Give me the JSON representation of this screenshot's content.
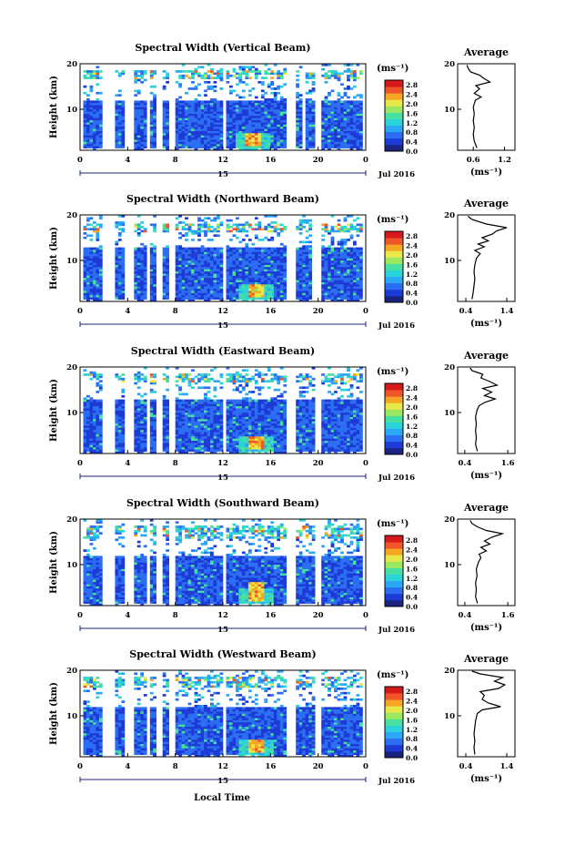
{
  "x_axis_title": "Local Time",
  "colorbar_unit": "(ms⁻¹)",
  "average_unit": "(ms⁻¹)",
  "average_title": "Average",
  "date_label": "Jul 2016",
  "day_label": "15",
  "y_axis_label": "Height (km)",
  "colormap": [
    "#1a237e",
    "#1d3ad6",
    "#2b6ef2",
    "#2aa7f5",
    "#2ad2d9",
    "#48e0a0",
    "#9be860",
    "#e8e84a",
    "#f5a623",
    "#f0552a",
    "#d7191c"
  ],
  "chart_data": [
    {
      "type": "heatmap",
      "title": "Spectral Width (Vertical Beam)",
      "xlabel": "Local Time",
      "ylabel": "Height (km)",
      "x_ticks": [
        "0",
        "4",
        "8",
        "12",
        "16",
        "20",
        "0"
      ],
      "y_ticks": [
        "10",
        "20"
      ],
      "xlim": [
        0,
        24
      ],
      "ylim": [
        1,
        20
      ],
      "colorbar_ticks": [
        "2.8",
        "2.4",
        "2.0",
        "1.6",
        "1.2",
        "0.8",
        "0.4",
        "0.0"
      ],
      "colorbar_range": [
        0.0,
        3.0
      ],
      "data_gaps_hours": [
        [
          1.8,
          2.8
        ],
        [
          3.8,
          4.4
        ],
        [
          5.5,
          5.8
        ],
        [
          6.5,
          6.9
        ],
        [
          7.6,
          8.1
        ],
        [
          12.0,
          12.3
        ],
        [
          17.3,
          18.0
        ],
        [
          18.6,
          19.0
        ],
        [
          19.7,
          20.3
        ]
      ],
      "features": {
        "low_layer_top_km": 12,
        "upper_band_km": [
          16.5,
          18.5
        ],
        "high_width_core": {
          "time_hours": 14.5,
          "height_km": [
            2.0,
            5.0
          ],
          "value": 2.6
        }
      },
      "average_profile": {
        "x_ticks": [
          "0.6",
          "1.2"
        ],
        "xlim": [
          0.3,
          1.4
        ],
        "height_km": [
          1.5,
          3,
          4.5,
          6,
          7.5,
          9,
          10.5,
          12,
          12.7,
          13.5,
          14.5,
          15.2,
          16,
          16.8,
          17.5,
          18.2,
          19,
          19.7
        ],
        "width": [
          0.67,
          0.62,
          0.6,
          0.62,
          0.6,
          0.62,
          0.6,
          0.64,
          0.75,
          0.62,
          0.72,
          0.65,
          0.92,
          0.8,
          0.72,
          0.55,
          0.5,
          0.48
        ]
      }
    },
    {
      "type": "heatmap",
      "title": "Spectral Width (Northward Beam)",
      "xlabel": "Local Time",
      "ylabel": "Height (km)",
      "x_ticks": [
        "0",
        "4",
        "8",
        "12",
        "16",
        "20",
        "0"
      ],
      "y_ticks": [
        "10",
        "20"
      ],
      "xlim": [
        0,
        24
      ],
      "ylim": [
        1,
        20
      ],
      "colorbar_ticks": [
        "2.8",
        "2.4",
        "2.0",
        "1.6",
        "1.2",
        "0.8",
        "0.4",
        "0.0"
      ],
      "colorbar_range": [
        0.0,
        3.0
      ],
      "data_gaps_hours": [
        [
          1.8,
          2.8
        ],
        [
          3.8,
          4.4
        ],
        [
          5.5,
          5.8
        ],
        [
          6.5,
          6.9
        ],
        [
          7.6,
          8.1
        ],
        [
          12.0,
          12.3
        ],
        [
          17.3,
          18.0
        ],
        [
          19.6,
          20.2
        ]
      ],
      "features": {
        "low_layer_top_km": 13,
        "upper_band_km": [
          16.0,
          18.0
        ],
        "high_width_core": {
          "time_hours": 14.8,
          "height_km": [
            2.0,
            5.0
          ],
          "value": 2.5
        }
      },
      "average_profile": {
        "x_ticks": [
          "0.4",
          "1.4"
        ],
        "xlim": [
          0.2,
          1.6
        ],
        "height_km": [
          1.5,
          3,
          4.5,
          6,
          7.5,
          9,
          10.5,
          11.5,
          12.2,
          13,
          13.6,
          14.3,
          15,
          15.8,
          16.5,
          17.2,
          18,
          19,
          19.7
        ],
        "width": [
          0.55,
          0.58,
          0.6,
          0.62,
          0.6,
          0.62,
          0.66,
          0.75,
          0.62,
          0.85,
          0.7,
          0.95,
          0.8,
          1.05,
          1.15,
          1.4,
          0.9,
          0.55,
          0.45
        ]
      }
    },
    {
      "type": "heatmap",
      "title": "Spectral Width (Eastward Beam)",
      "xlabel": "Local Time",
      "ylabel": "Height (km)",
      "x_ticks": [
        "0",
        "4",
        "8",
        "12",
        "16",
        "20",
        "0"
      ],
      "y_ticks": [
        "10",
        "20"
      ],
      "xlim": [
        0,
        24
      ],
      "ylim": [
        1,
        20
      ],
      "colorbar_ticks": [
        "2.8",
        "2.4",
        "2.0",
        "1.6",
        "1.2",
        "0.8",
        "0.4",
        "0.0"
      ],
      "colorbar_range": [
        0.0,
        3.0
      ],
      "data_gaps_hours": [
        [
          1.8,
          2.8
        ],
        [
          3.8,
          4.4
        ],
        [
          5.5,
          5.8
        ],
        [
          6.5,
          6.9
        ],
        [
          7.6,
          8.1
        ],
        [
          12.0,
          12.3
        ],
        [
          17.3,
          18.0
        ],
        [
          19.7,
          20.3
        ]
      ],
      "features": {
        "low_layer_top_km": 13,
        "upper_band_km": [
          16.5,
          18.5
        ],
        "high_width_core": {
          "time_hours": 14.8,
          "height_km": [
            2.0,
            5.0
          ],
          "value": 2.6
        }
      },
      "average_profile": {
        "x_ticks": [
          "0.4",
          "1.6"
        ],
        "xlim": [
          0.2,
          1.8
        ],
        "height_km": [
          1.5,
          3,
          4.5,
          6,
          7.5,
          9,
          10.5,
          11.5,
          12.2,
          13,
          13.7,
          14.5,
          15.3,
          16,
          16.8,
          17.6,
          18.4,
          19.2,
          19.8
        ],
        "width": [
          0.75,
          0.7,
          0.72,
          0.7,
          0.72,
          0.7,
          0.74,
          0.8,
          0.95,
          1.25,
          0.95,
          1.15,
          0.9,
          1.3,
          1.1,
          0.85,
          0.9,
          0.6,
          0.55
        ]
      }
    },
    {
      "type": "heatmap",
      "title": "Spectral Width (Southward Beam)",
      "xlabel": "Local Time",
      "ylabel": "Height (km)",
      "x_ticks": [
        "0",
        "4",
        "8",
        "12",
        "16",
        "20",
        "0"
      ],
      "y_ticks": [
        "10",
        "20"
      ],
      "xlim": [
        0,
        24
      ],
      "ylim": [
        1,
        20
      ],
      "colorbar_ticks": [
        "2.8",
        "2.4",
        "2.0",
        "1.6",
        "1.2",
        "0.8",
        "0.4",
        "0.0"
      ],
      "colorbar_range": [
        0.0,
        3.0
      ],
      "data_gaps_hours": [
        [
          1.8,
          2.8
        ],
        [
          3.8,
          4.4
        ],
        [
          5.5,
          5.8
        ],
        [
          6.5,
          6.9
        ],
        [
          7.6,
          8.1
        ],
        [
          12.0,
          12.3
        ],
        [
          17.3,
          18.0
        ],
        [
          19.7,
          20.3
        ]
      ],
      "features": {
        "low_layer_top_km": 12,
        "upper_band_km": [
          15.5,
          18.5
        ],
        "high_width_core": {
          "time_hours": 14.8,
          "height_km": [
            2.0,
            6.0
          ],
          "value": 2.5
        }
      },
      "average_profile": {
        "x_ticks": [
          "0.4",
          "1.6"
        ],
        "xlim": [
          0.2,
          1.8
        ],
        "height_km": [
          1.5,
          3,
          4.5,
          6,
          7.5,
          9,
          10.5,
          11.5,
          12.3,
          13,
          13.8,
          14.5,
          15.2,
          16,
          16.8,
          17.5,
          18.3,
          19,
          19.7
        ],
        "width": [
          0.75,
          0.7,
          0.72,
          0.7,
          0.74,
          0.72,
          0.78,
          0.85,
          0.8,
          1.0,
          0.85,
          1.1,
          0.95,
          1.15,
          1.45,
          1.0,
          0.75,
          0.6,
          0.55
        ]
      }
    },
    {
      "type": "heatmap",
      "title": "Spectral Width (Westward Beam)",
      "xlabel": "Local Time",
      "ylabel": "Height (km)",
      "x_ticks": [
        "0",
        "4",
        "8",
        "12",
        "16",
        "20",
        "0"
      ],
      "y_ticks": [
        "10",
        "20"
      ],
      "xlim": [
        0,
        24
      ],
      "ylim": [
        1,
        20
      ],
      "colorbar_ticks": [
        "2.8",
        "2.4",
        "2.0",
        "1.6",
        "1.2",
        "0.8",
        "0.4",
        "0.0"
      ],
      "colorbar_range": [
        0.0,
        3.0
      ],
      "data_gaps_hours": [
        [
          1.8,
          2.8
        ],
        [
          3.8,
          4.4
        ],
        [
          5.5,
          5.8
        ],
        [
          6.5,
          6.9
        ],
        [
          7.6,
          8.1
        ],
        [
          12.0,
          12.3
        ],
        [
          17.3,
          18.0
        ],
        [
          19.7,
          20.3
        ]
      ],
      "features": {
        "low_layer_top_km": 12,
        "upper_band_km": [
          16.0,
          18.5
        ],
        "high_width_core": {
          "time_hours": 14.8,
          "height_km": [
            2.0,
            5.0
          ],
          "value": 2.5
        }
      },
      "average_profile": {
        "x_ticks": [
          "0.4",
          "1.4"
        ],
        "xlim": [
          0.2,
          1.6
        ],
        "height_km": [
          1.5,
          3,
          4.5,
          6,
          7.5,
          9,
          10.5,
          11.3,
          12,
          12.8,
          13.6,
          14.5,
          15.3,
          16,
          16.8,
          17.6,
          18.4,
          19.2,
          19.8
        ],
        "width": [
          0.62,
          0.6,
          0.62,
          0.6,
          0.62,
          0.64,
          0.68,
          0.8,
          1.25,
          0.95,
          0.8,
          0.85,
          0.75,
          1.2,
          1.35,
          1.1,
          1.3,
          0.75,
          0.55
        ]
      }
    }
  ]
}
